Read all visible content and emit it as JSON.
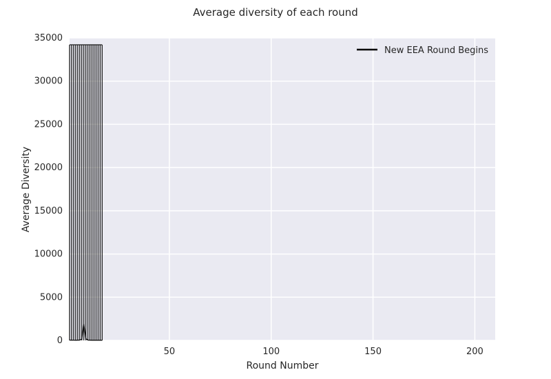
{
  "chart_data": {
    "type": "line",
    "title": "Average diversity of each round",
    "xlabel": "Round Number",
    "ylabel": "Average Diversity",
    "xlim": [
      1,
      210
    ],
    "ylim": [
      0,
      35000
    ],
    "xticks": [
      50,
      100,
      150,
      200
    ],
    "yticks": [
      0,
      5000,
      10000,
      15000,
      20000,
      25000,
      30000,
      35000
    ],
    "grid": true,
    "legend": {
      "position": "top-right",
      "entries": [
        "New EEA Round Begins"
      ]
    },
    "round_start_x": [
      1,
      2,
      3,
      4,
      5,
      6,
      7,
      8,
      9,
      10,
      11,
      12,
      13,
      14,
      15,
      16,
      17
    ],
    "round_start_height": 34200,
    "series": [
      {
        "x": [
          1,
          2,
          3,
          4,
          5,
          6,
          7,
          8,
          9,
          10,
          11,
          12,
          13,
          14,
          15,
          16,
          17
        ],
        "y": [
          40,
          30,
          25,
          20,
          30,
          40,
          150,
          1900,
          200,
          40,
          30,
          20,
          25,
          20,
          20,
          20,
          20
        ]
      }
    ],
    "colors": {
      "plot_bg": "#eaeaf2",
      "grid": "#ffffff",
      "line": "#000000",
      "round_line": "#1a1a1a"
    }
  }
}
